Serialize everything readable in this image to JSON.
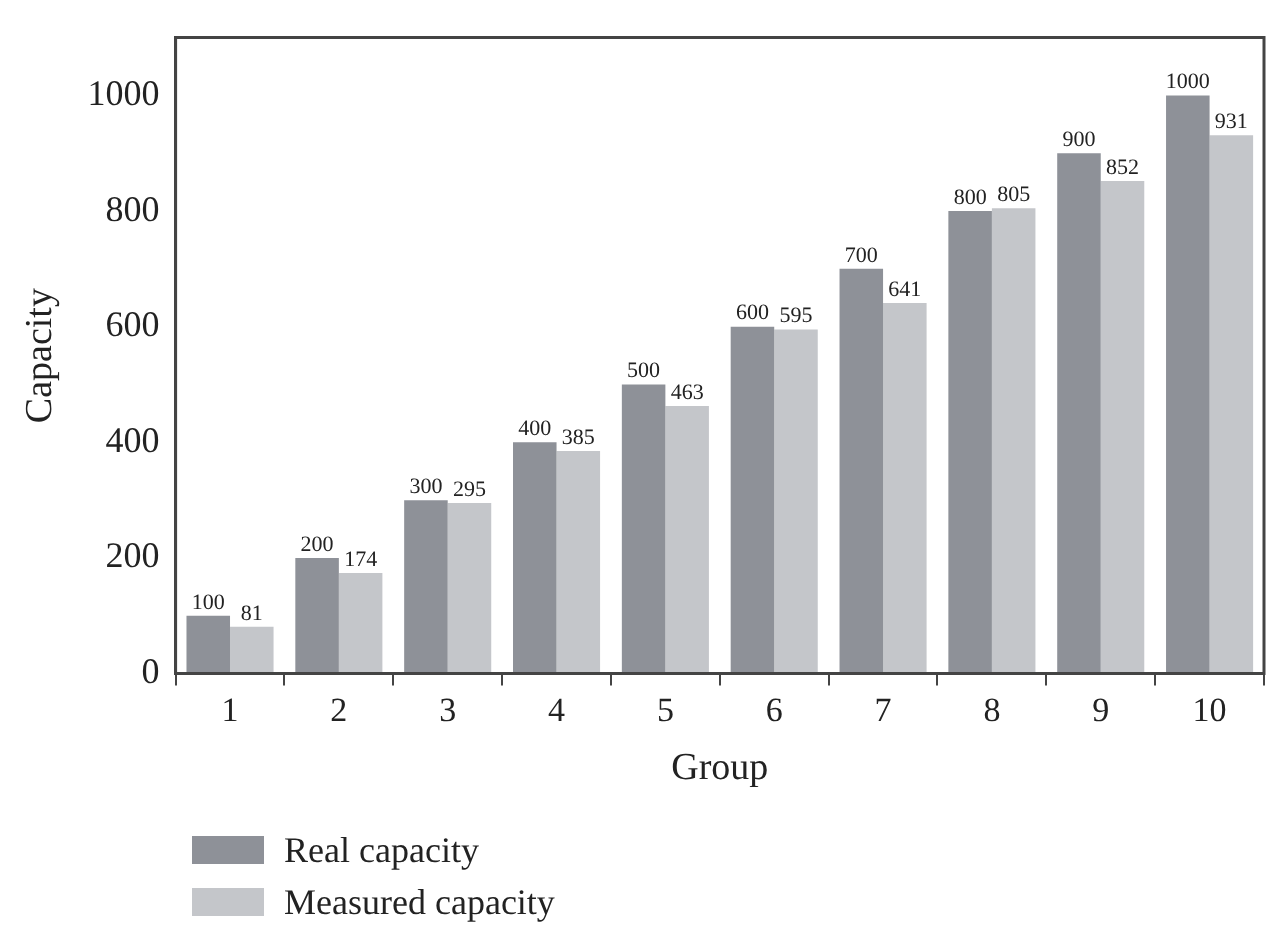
{
  "chart_data": {
    "type": "bar",
    "xlabel": "Group",
    "ylabel": "Capacity",
    "categories": [
      "1",
      "2",
      "3",
      "4",
      "5",
      "6",
      "7",
      "8",
      "9",
      "10"
    ],
    "series": [
      {
        "name": "Real capacity",
        "color": "#8e9198",
        "values": [
          100,
          200,
          300,
          400,
          500,
          600,
          700,
          800,
          900,
          1000
        ]
      },
      {
        "name": "Measured capacity",
        "color": "#c4c6ca",
        "values": [
          81,
          174,
          295,
          385,
          463,
          595,
          641,
          805,
          852,
          931
        ]
      }
    ],
    "ylim": [
      0,
      1100
    ],
    "yticks": [
      0,
      200,
      400,
      600,
      800,
      1000
    ],
    "grid": false,
    "legend": "bottom left",
    "data_labels": true
  }
}
